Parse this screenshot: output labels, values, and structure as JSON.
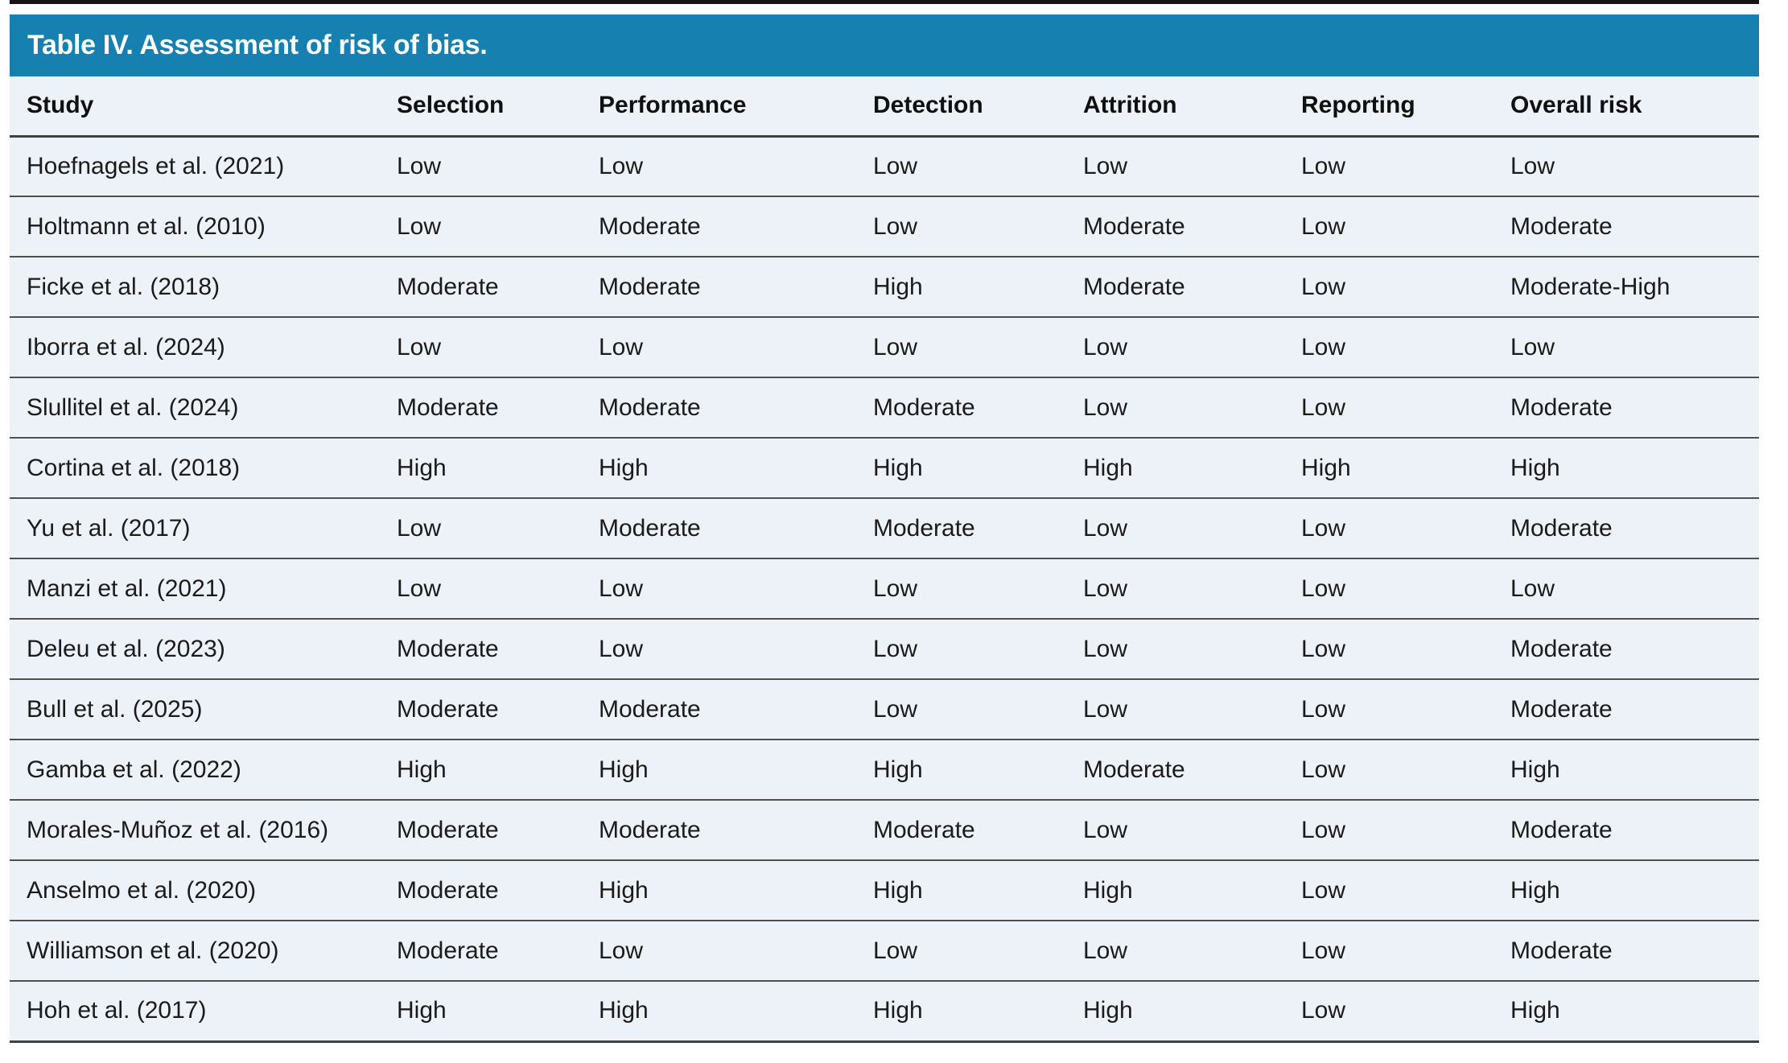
{
  "table": {
    "title": "Table IV. Assessment of risk of bias.",
    "colors": {
      "title_bar": "#1681B1",
      "title_text": "#ffffff",
      "row_bg": "#EDF1F8",
      "text": "#1B1B1B",
      "rule": "#4F4F4F",
      "strong_rule": "#3F3F3F",
      "top_rule": "#151515"
    },
    "columns": [
      "Study",
      "Selection",
      "Performance",
      "Detection",
      "Attrition",
      "Reporting",
      "Overall risk"
    ],
    "rows": [
      [
        "Hoefnagels et al. (2021)",
        "Low",
        "Low",
        "Low",
        "Low",
        "Low",
        "Low"
      ],
      [
        "Holtmann et al. (2010)",
        "Low",
        "Moderate",
        "Low",
        "Moderate",
        "Low",
        "Moderate"
      ],
      [
        "Ficke et al. (2018)",
        "Moderate",
        "Moderate",
        "High",
        "Moderate",
        "Low",
        "Moderate-High"
      ],
      [
        "Iborra et al. (2024)",
        "Low",
        "Low",
        "Low",
        "Low",
        "Low",
        "Low"
      ],
      [
        "Slullitel et al. (2024)",
        "Moderate",
        "Moderate",
        "Moderate",
        "Low",
        "Low",
        "Moderate"
      ],
      [
        "Cortina et al. (2018)",
        "High",
        "High",
        "High",
        "High",
        "High",
        "High"
      ],
      [
        "Yu et al. (2017)",
        "Low",
        "Moderate",
        "Moderate",
        "Low",
        "Low",
        "Moderate"
      ],
      [
        "Manzi et al. (2021)",
        "Low",
        "Low",
        "Low",
        "Low",
        "Low",
        "Low"
      ],
      [
        "Deleu et al. (2023)",
        "Moderate",
        "Low",
        "Low",
        "Low",
        "Low",
        "Moderate"
      ],
      [
        "Bull et al. (2025)",
        "Moderate",
        "Moderate",
        "Low",
        "Low",
        "Low",
        "Moderate"
      ],
      [
        "Gamba et al. (2022)",
        "High",
        "High",
        "High",
        "Moderate",
        "Low",
        "High"
      ],
      [
        "Morales-Muñoz et al. (2016)",
        "Moderate",
        "Moderate",
        "Moderate",
        "Low",
        "Low",
        "Moderate"
      ],
      [
        "Anselmo et al. (2020)",
        "Moderate",
        "High",
        "High",
        "High",
        "Low",
        "High"
      ],
      [
        "Williamson et al. (2020)",
        "Moderate",
        "Low",
        "Low",
        "Low",
        "Low",
        "Moderate"
      ],
      [
        "Hoh et al. (2017)",
        "High",
        "High",
        "High",
        "High",
        "Low",
        "High"
      ]
    ]
  }
}
